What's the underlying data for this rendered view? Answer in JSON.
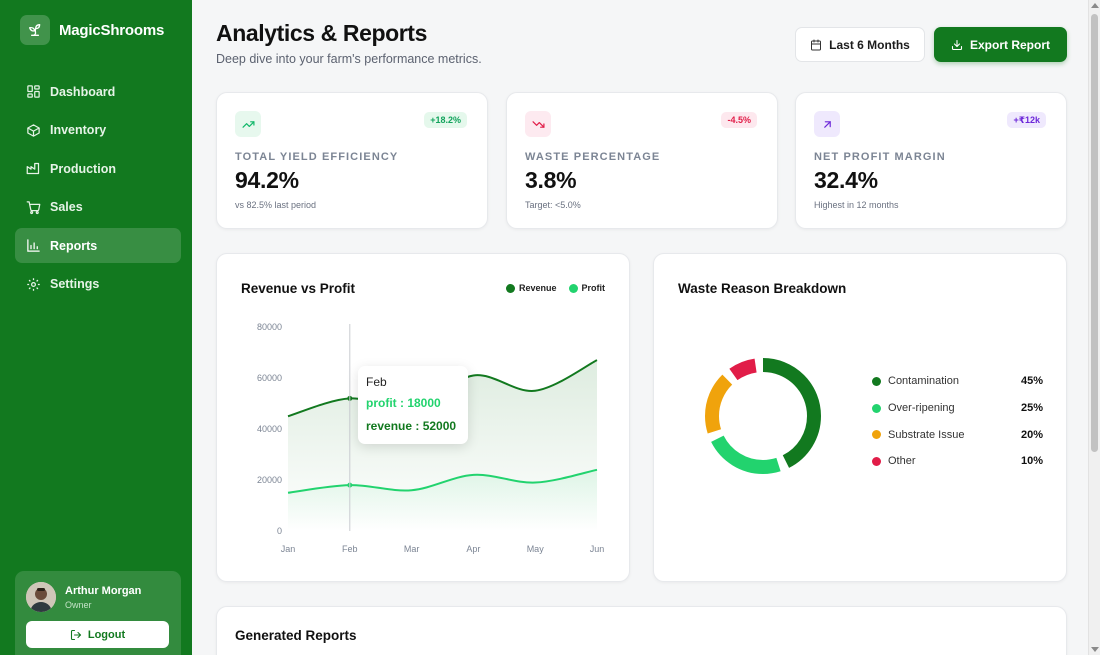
{
  "app": {
    "name": "MagicShrooms"
  },
  "sidebar": {
    "items": [
      {
        "label": "Dashboard",
        "icon": "grid-icon"
      },
      {
        "label": "Inventory",
        "icon": "box-icon"
      },
      {
        "label": "Production",
        "icon": "factory-icon"
      },
      {
        "label": "Sales",
        "icon": "cart-icon"
      },
      {
        "label": "Reports",
        "icon": "bar-chart-icon",
        "active": true
      },
      {
        "label": "Settings",
        "icon": "gear-icon"
      }
    ],
    "user": {
      "name": "Arthur Morgan",
      "role": "Owner",
      "logout": "Logout"
    }
  },
  "header": {
    "title": "Analytics & Reports",
    "subtitle": "Deep dive into your farm's performance metrics.",
    "range_label": "Last 6 Months",
    "export_label": "Export Report"
  },
  "kpis": [
    {
      "label": "Total Yield Efficiency",
      "value": "94.2%",
      "badge": "+18.2%",
      "note": "vs 82.5% last period",
      "icon": "trending-up-icon",
      "color": "#12b76a"
    },
    {
      "label": "Waste Percentage",
      "value": "3.8%",
      "badge": "-4.5%",
      "note": "Target: <5.0%",
      "icon": "trending-down-icon",
      "color": "#e11d48"
    },
    {
      "label": "Net Profit Margin",
      "value": "32.4%",
      "badge": "+₹12k",
      "note": "Highest in 12 months",
      "icon": "arrow-up-right-icon",
      "color": "#6d28d9"
    }
  ],
  "revenue_chart": {
    "title": "Revenue vs Profit",
    "tooltip": {
      "title": "Feb",
      "profit": "profit : 18000",
      "revenue": "revenue : 52000"
    }
  },
  "waste_chart": {
    "title": "Waste Reason Breakdown"
  },
  "generated_reports": {
    "title": "Generated Reports"
  },
  "colors": {
    "brand": "#12791f",
    "revenue": "#12791f",
    "profit": "#22d36e",
    "substrate": "#f0a30c",
    "other": "#e11d48"
  },
  "chart_data": [
    {
      "type": "area",
      "title": "Revenue vs Profit",
      "categories": [
        "Jan",
        "Feb",
        "Mar",
        "Apr",
        "May",
        "Jun"
      ],
      "series": [
        {
          "name": "Revenue",
          "values": [
            45000,
            52000,
            48000,
            61000,
            55000,
            67000
          ],
          "color": "#12791f"
        },
        {
          "name": "Profit",
          "values": [
            15000,
            18000,
            16000,
            22000,
            19000,
            24000
          ],
          "color": "#22d36e"
        }
      ],
      "yticks": [
        0,
        20000,
        40000,
        60000,
        80000
      ],
      "ylim": [
        0,
        80000
      ],
      "legend": "top-right",
      "grid": false
    },
    {
      "type": "pie",
      "title": "Waste Reason Breakdown",
      "categories": [
        "Contamination",
        "Over-ripening",
        "Substrate Issue",
        "Other"
      ],
      "values": [
        45,
        25,
        20,
        10
      ],
      "labels": [
        "45%",
        "25%",
        "20%",
        "10%"
      ],
      "colors": [
        "#12791f",
        "#22d36e",
        "#f0a30c",
        "#e11d48"
      ],
      "legend": "right"
    }
  ]
}
